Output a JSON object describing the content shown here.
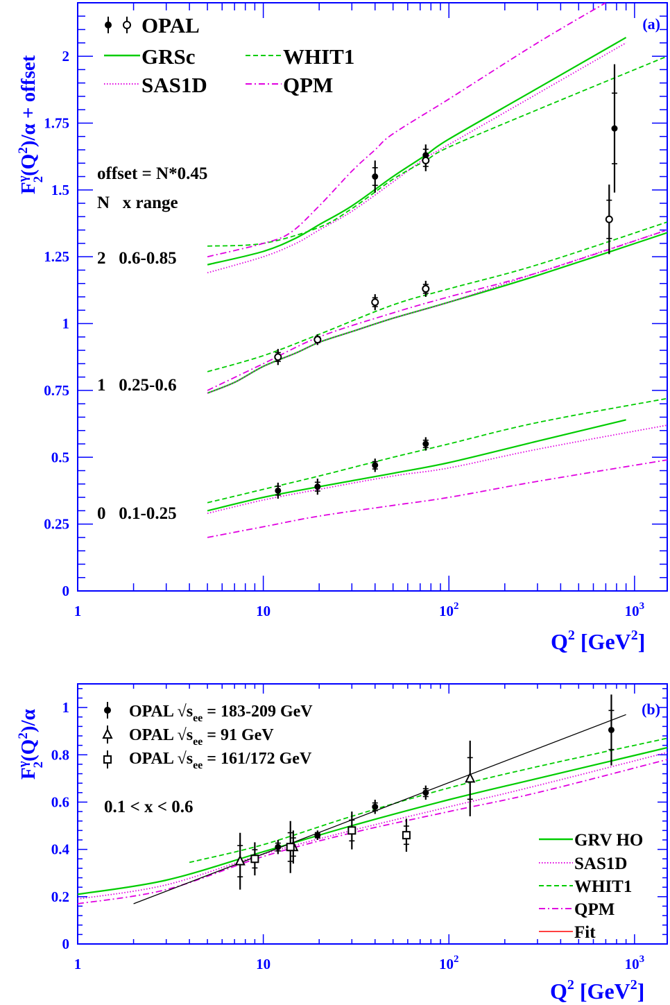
{
  "colors": {
    "frame": "#0000ff",
    "axis_text": "#0000ff",
    "data": "#000000",
    "grs": "#00cc00",
    "sas": "#e000e0",
    "whit": "#00cc00",
    "qpm": "#e000e0",
    "fit_legend": "#ff0000",
    "fit_line": "#000000"
  },
  "chart_data": [
    {
      "type": "line",
      "panel_label": "(a)",
      "ylabel": "F_2^γ(Q²)/α + offset",
      "xlabel": "Q² [GeV²]",
      "xscale": "log",
      "xlim": [
        1,
        1500
      ],
      "ylim": [
        0,
        2.2
      ],
      "y_ticks": [
        "0",
        "0.25",
        "0.5",
        "0.75",
        "1",
        "1.25",
        "1.5",
        "1.75",
        "2"
      ],
      "x_ticks": [
        "1",
        "10",
        "10²",
        "10³"
      ],
      "legend": {
        "data_label": "OPAL",
        "entries": [
          "GRSc",
          "WHIT1",
          "SAS1D",
          "QPM"
        ]
      },
      "annotations": {
        "offset": "offset = N*0.45",
        "header": "N   x range",
        "rows": [
          "0   0.1-0.25",
          "1   0.25-0.6",
          "2   0.6-0.85"
        ]
      },
      "series": [
        {
          "name": "GRSc",
          "style": "solid",
          "color_key": "grs",
          "x": [
            5,
            10,
            20,
            50,
            100,
            300,
            900
          ],
          "y": [
            0.3,
            0.35,
            0.39,
            0.44,
            0.48,
            0.56,
            0.64
          ]
        },
        {
          "name": "SAS1D",
          "style": "dotted",
          "color_key": "sas",
          "x": [
            5,
            10,
            20,
            50,
            100,
            300,
            1500
          ],
          "y": [
            0.29,
            0.34,
            0.38,
            0.43,
            0.46,
            0.53,
            0.62
          ]
        },
        {
          "name": "WHIT1",
          "style": "dashed",
          "color_key": "whit",
          "x": [
            5,
            10,
            20,
            50,
            100,
            300,
            1500
          ],
          "y": [
            0.33,
            0.38,
            0.43,
            0.5,
            0.55,
            0.63,
            0.72
          ]
        },
        {
          "name": "QPM",
          "style": "dashdot",
          "color_key": "qpm",
          "x": [
            5,
            10,
            20,
            50,
            100,
            300,
            1500
          ],
          "y": [
            0.2,
            0.24,
            0.28,
            0.32,
            0.35,
            0.41,
            0.49
          ]
        },
        {
          "name": "GRSc",
          "style": "solid",
          "color_key": "grs",
          "x": [
            5,
            7,
            10,
            15,
            20,
            30,
            50,
            100,
            300,
            1500
          ],
          "y": [
            0.74,
            0.78,
            0.84,
            0.89,
            0.93,
            0.97,
            1.02,
            1.08,
            1.18,
            1.34
          ]
        },
        {
          "name": "SAS1D",
          "style": "dotted",
          "color_key": "sas",
          "x": [
            5,
            7,
            10,
            15,
            20,
            30,
            50,
            100,
            300,
            1500
          ],
          "y": [
            0.74,
            0.78,
            0.84,
            0.89,
            0.93,
            0.97,
            1.02,
            1.08,
            1.19,
            1.35
          ]
        },
        {
          "name": "WHIT1",
          "style": "dashed",
          "color_key": "whit",
          "x": [
            5,
            10,
            20,
            50,
            100,
            300,
            1500
          ],
          "y": [
            0.82,
            0.88,
            0.96,
            1.07,
            1.13,
            1.22,
            1.38
          ]
        },
        {
          "name": "QPM",
          "style": "dashdot",
          "color_key": "qpm",
          "x": [
            5,
            10,
            20,
            50,
            100,
            300,
            1500
          ],
          "y": [
            0.75,
            0.85,
            0.95,
            1.04,
            1.1,
            1.19,
            1.35
          ]
        },
        {
          "name": "GRSc",
          "style": "solid",
          "color_key": "grs",
          "x": [
            5,
            10,
            15,
            20,
            30,
            50,
            75,
            100,
            300,
            900
          ],
          "y": [
            1.22,
            1.27,
            1.32,
            1.37,
            1.44,
            1.55,
            1.63,
            1.69,
            1.88,
            2.07
          ]
        },
        {
          "name": "SAS1D",
          "style": "dotted",
          "color_key": "sas",
          "x": [
            5,
            10,
            15,
            20,
            30,
            50,
            75,
            100,
            300,
            900
          ],
          "y": [
            1.19,
            1.25,
            1.3,
            1.35,
            1.42,
            1.53,
            1.62,
            1.67,
            1.86,
            2.05
          ]
        },
        {
          "name": "WHIT1",
          "style": "dashed",
          "color_key": "whit",
          "x": [
            5,
            10,
            20,
            30,
            50,
            75,
            100,
            300,
            1500
          ],
          "y": [
            1.29,
            1.3,
            1.36,
            1.43,
            1.54,
            1.61,
            1.66,
            1.8,
            2.0
          ]
        },
        {
          "name": "QPM",
          "style": "dashdot",
          "color_key": "qpm",
          "x": [
            5,
            10,
            14,
            20,
            30,
            40,
            50,
            100,
            300,
            700
          ],
          "y": [
            1.25,
            1.3,
            1.34,
            1.44,
            1.57,
            1.65,
            1.71,
            1.84,
            2.05,
            2.2
          ]
        }
      ],
      "points": [
        {
          "x": 12,
          "y": 0.375,
          "err": 0.03,
          "marker": "filled"
        },
        {
          "x": 19.6,
          "y": 0.39,
          "err": 0.03,
          "marker": "filled"
        },
        {
          "x": 40,
          "y": 0.47,
          "err": 0.025,
          "marker": "filled"
        },
        {
          "x": 75,
          "y": 0.55,
          "err": 0.025,
          "marker": "filled"
        },
        {
          "x": 12,
          "y": 0.875,
          "err": 0.03,
          "marker": "open"
        },
        {
          "x": 19.6,
          "y": 0.94,
          "err": 0.02,
          "marker": "open"
        },
        {
          "x": 40,
          "y": 1.08,
          "err": 0.03,
          "marker": "open"
        },
        {
          "x": 75,
          "y": 1.13,
          "err": 0.03,
          "marker": "open"
        },
        {
          "x": 40,
          "y": 1.55,
          "err": 0.06,
          "marker": "filled"
        },
        {
          "x": 75,
          "y": 1.63,
          "err": 0.04,
          "marker": "filled"
        },
        {
          "x": 75,
          "y": 1.61,
          "err": 0.04,
          "marker": "open"
        },
        {
          "x": 780,
          "y": 1.73,
          "err": 0.24,
          "marker": "filled"
        },
        {
          "x": 730,
          "y": 1.39,
          "err": 0.13,
          "marker": "open"
        }
      ]
    },
    {
      "type": "line",
      "panel_label": "(b)",
      "ylabel": "F_2^γ(Q²)/α",
      "xlabel": "Q² [GeV²]",
      "xscale": "log",
      "xlim": [
        1,
        1500
      ],
      "ylim": [
        0,
        1.1
      ],
      "y_ticks": [
        "0",
        "0.2",
        "0.4",
        "0.6",
        "0.8",
        "1"
      ],
      "x_ticks": [
        "1",
        "10",
        "10²",
        "10³"
      ],
      "legend": {
        "data_entries": [
          {
            "marker": "filled",
            "label": "OPAL √s",
            "sub": "ee",
            "value": " = 183-209 GeV"
          },
          {
            "marker": "triangle",
            "label": "OPAL √s",
            "sub": "ee",
            "value": " = 91 GeV"
          },
          {
            "marker": "square",
            "label": "OPAL √s",
            "sub": "ee",
            "value": " = 161/172 GeV"
          }
        ],
        "curve_entries": [
          "GRV HO",
          "SAS1D",
          "WHIT1",
          "QPM",
          "Fit"
        ]
      },
      "annotations": {
        "x_range": "0.1 < x < 0.6"
      },
      "series": [
        {
          "name": "GRV HO",
          "style": "solid",
          "color_key": "grs",
          "x": [
            1,
            3,
            10,
            30,
            100,
            300,
            1500
          ],
          "y": [
            0.21,
            0.27,
            0.39,
            0.5,
            0.61,
            0.7,
            0.83
          ]
        },
        {
          "name": "SAS1D",
          "style": "dotted",
          "color_key": "sas",
          "x": [
            1,
            3,
            10,
            30,
            100,
            300,
            1500
          ],
          "y": [
            0.19,
            0.25,
            0.38,
            0.48,
            0.58,
            0.67,
            0.81
          ]
        },
        {
          "name": "WHIT1",
          "style": "dashed",
          "color_key": "whit",
          "x": [
            4,
            10,
            30,
            100,
            300,
            1500
          ],
          "y": [
            0.345,
            0.42,
            0.54,
            0.66,
            0.75,
            0.87
          ]
        },
        {
          "name": "QPM",
          "style": "dashdot",
          "color_key": "qpm",
          "x": [
            1,
            3,
            10,
            30,
            100,
            300,
            1500
          ],
          "y": [
            0.17,
            0.23,
            0.37,
            0.47,
            0.56,
            0.64,
            0.78
          ]
        },
        {
          "name": "Fit",
          "style": "solid",
          "color_key": "fit_line",
          "x": [
            2,
            900
          ],
          "y": [
            0.17,
            0.97
          ]
        }
      ],
      "points": [
        {
          "x": 12,
          "y": 0.41,
          "err": 0.03,
          "marker": "filled"
        },
        {
          "x": 19.6,
          "y": 0.46,
          "err": 0.02,
          "marker": "filled"
        },
        {
          "x": 40,
          "y": 0.58,
          "err": 0.03,
          "marker": "filled"
        },
        {
          "x": 75,
          "y": 0.64,
          "err": 0.03,
          "marker": "filled"
        },
        {
          "x": 750,
          "y": 0.905,
          "err": 0.15,
          "marker": "filled"
        },
        {
          "x": 7.5,
          "y": 0.35,
          "err": 0.12,
          "marker": "triangle"
        },
        {
          "x": 14.5,
          "y": 0.41,
          "err": 0.07,
          "marker": "triangle"
        },
        {
          "x": 130,
          "y": 0.7,
          "err": 0.16,
          "marker": "triangle"
        },
        {
          "x": 9,
          "y": 0.36,
          "err": 0.07,
          "marker": "square"
        },
        {
          "x": 14,
          "y": 0.41,
          "err": 0.11,
          "marker": "square"
        },
        {
          "x": 30,
          "y": 0.48,
          "err": 0.08,
          "marker": "square"
        },
        {
          "x": 59,
          "y": 0.46,
          "err": 0.07,
          "marker": "square"
        }
      ]
    }
  ]
}
